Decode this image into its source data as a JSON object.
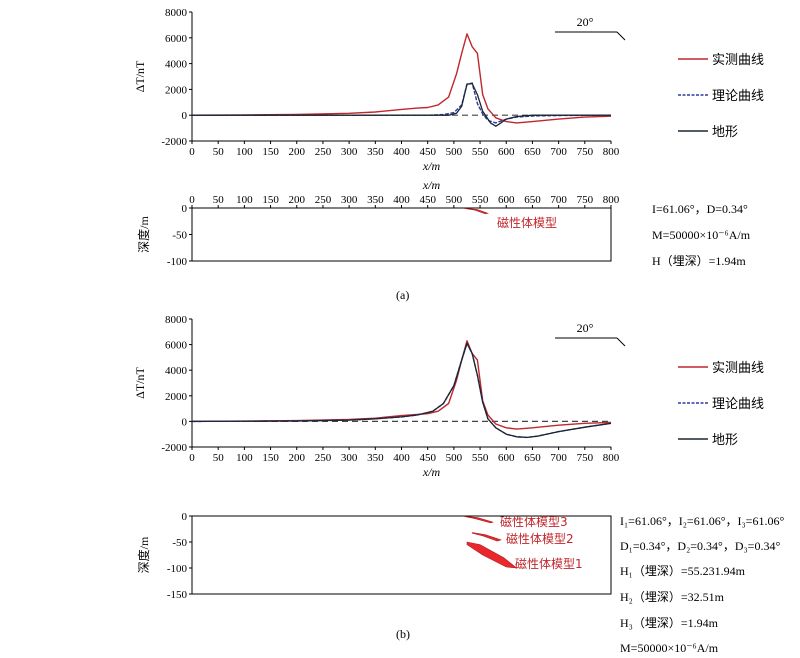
{
  "colors": {
    "measured": "#c0272d",
    "theory": "#2e3a9e",
    "terrain": "#1b2631",
    "zero": "#444444",
    "body": "#e8282b"
  },
  "chart_data": [
    {
      "type": "line",
      "panel": "(a)",
      "xlabel": "x/m",
      "ylabel": "ΔT/nT",
      "xlim": [
        0,
        800
      ],
      "ylim": [
        -2000,
        8000
      ],
      "x_ticks": [
        "0",
        "50",
        "100",
        "150",
        "200",
        "250",
        "300",
        "350",
        "400",
        "450",
        "500",
        "550",
        "600",
        "650",
        "700",
        "750",
        "800"
      ],
      "y_ticks": [
        "8000",
        "6000",
        "4000",
        "2000",
        "0",
        "-2000"
      ],
      "angle_label": "20°",
      "legend": [
        "实测曲线",
        "理论曲线",
        "地形"
      ],
      "series": [
        {
          "name": "实测曲线",
          "x": [
            0,
            100,
            200,
            300,
            350,
            400,
            430,
            450,
            470,
            490,
            505,
            515,
            525,
            535,
            545,
            555,
            565,
            580,
            600,
            620,
            650,
            700,
            750,
            800
          ],
          "y": [
            0,
            20,
            60,
            150,
            250,
            450,
            550,
            600,
            800,
            1400,
            3200,
            4800,
            6300,
            5300,
            4800,
            1600,
            500,
            -200,
            -500,
            -600,
            -500,
            -300,
            -150,
            -80
          ]
        },
        {
          "name": "理论曲线",
          "x": [
            0,
            300,
            450,
            480,
            500,
            515,
            525,
            535,
            545,
            555,
            565,
            580,
            600,
            620,
            650,
            700,
            800
          ],
          "y": [
            0,
            0,
            0,
            50,
            200,
            800,
            2400,
            2500,
            900,
            100,
            -400,
            -600,
            -300,
            -150,
            -60,
            -20,
            0
          ]
        },
        {
          "name": "地形",
          "x": [
            0,
            450,
            490,
            505,
            515,
            525,
            535,
            545,
            555,
            570,
            580,
            590,
            600,
            620,
            650,
            700,
            800
          ],
          "y": [
            0,
            0,
            0,
            150,
            700,
            2400,
            2450,
            1600,
            300,
            -600,
            -850,
            -600,
            -300,
            -100,
            0,
            0,
            0
          ]
        }
      ]
    },
    {
      "type": "line",
      "panel": "(b)",
      "xlabel": "x/m",
      "ylabel": "ΔT/nT",
      "xlim": [
        0,
        800
      ],
      "ylim": [
        -2000,
        8000
      ],
      "x_ticks": [
        "0",
        "50",
        "100",
        "150",
        "200",
        "250",
        "300",
        "350",
        "400",
        "450",
        "500",
        "550",
        "600",
        "650",
        "700",
        "750",
        "800"
      ],
      "y_ticks": [
        "8000",
        "6000",
        "4000",
        "2000",
        "0",
        "-2000"
      ],
      "angle_label": "20°",
      "legend": [
        "实测曲线",
        "理论曲线",
        "地形"
      ],
      "series": [
        {
          "name": "实测曲线",
          "x": [
            0,
            100,
            200,
            300,
            350,
            400,
            430,
            450,
            470,
            490,
            505,
            515,
            525,
            535,
            545,
            555,
            565,
            580,
            600,
            620,
            650,
            700,
            750,
            800
          ],
          "y": [
            0,
            20,
            60,
            150,
            250,
            450,
            550,
            600,
            800,
            1400,
            3200,
            4800,
            6300,
            5300,
            4800,
            1600,
            500,
            -200,
            -500,
            -600,
            -500,
            -300,
            -150,
            -80
          ]
        },
        {
          "name": "理论曲线",
          "x": [
            0,
            200,
            300,
            350,
            400,
            430,
            460,
            480,
            500,
            515,
            525,
            535,
            545,
            555,
            565,
            580,
            600,
            620,
            640,
            660,
            700,
            750,
            800
          ],
          "y": [
            0,
            30,
            100,
            200,
            350,
            500,
            800,
            1400,
            2800,
            4800,
            6100,
            5300,
            3600,
            1500,
            200,
            -500,
            -1000,
            -1200,
            -1250,
            -1150,
            -800,
            -450,
            -150
          ]
        },
        {
          "name": "地形",
          "x": [
            0,
            200,
            300,
            350,
            400,
            430,
            460,
            480,
            500,
            515,
            525,
            535,
            545,
            555,
            565,
            580,
            600,
            620,
            640,
            660,
            700,
            750,
            800
          ],
          "y": [
            0,
            30,
            100,
            200,
            350,
            500,
            800,
            1400,
            2800,
            4800,
            6100,
            5300,
            3600,
            1500,
            200,
            -500,
            -1000,
            -1200,
            -1250,
            -1150,
            -800,
            -450,
            -150
          ]
        }
      ]
    }
  ],
  "depth_a": {
    "xlabel": "x/m",
    "ylabel": "深度/m",
    "xlim": [
      0,
      800
    ],
    "ylim": [
      -100,
      0
    ],
    "x_ticks": [
      "0",
      "50",
      "100",
      "150",
      "200",
      "250",
      "300",
      "350",
      "400",
      "450",
      "500",
      "550",
      "600",
      "650",
      "700",
      "750",
      "800"
    ],
    "y_ticks": [
      "0",
      "-50",
      "-100"
    ],
    "bodies": [
      {
        "label": "磁性体模型",
        "x": [
          520,
          545,
          565,
          560,
          540,
          520
        ],
        "y": [
          -0.5,
          -3,
          -10,
          -11,
          -4,
          -1
        ]
      }
    ],
    "params": [
      "I=61.06°，D=0.34°",
      "M=50000×10⁻⁶A/m",
      "H（埋深）=1.94m"
    ]
  },
  "depth_b": {
    "ylabel": "深度/m",
    "xlim": [
      0,
      800
    ],
    "ylim": [
      -150,
      0
    ],
    "y_ticks": [
      "0",
      "-50",
      "-100",
      "-150"
    ],
    "bodies": [
      {
        "label": "磁性体模型3",
        "x": [
          520,
          545,
          575,
          570,
          540,
          520
        ],
        "y": [
          -0.5,
          -3,
          -12,
          -13,
          -5,
          -1
        ]
      },
      {
        "label": "磁性体模型2",
        "x": [
          535,
          560,
          590,
          583,
          555,
          535
        ],
        "y": [
          -32,
          -36,
          -46,
          -48,
          -38,
          -33
        ]
      },
      {
        "label": "磁性体模型1",
        "x": [
          525,
          550,
          595,
          620,
          600,
          555,
          525
        ],
        "y": [
          -50,
          -55,
          -80,
          -100,
          -98,
          -75,
          -55
        ]
      }
    ],
    "params": [
      "I₁=61.06°，I₂=61.06°，I₃=61.06°",
      "D₁=0.34°，D₂=0.34°，D₃=0.34°",
      "H₁（埋深）=55.231.94m",
      "H₂（埋深）=32.51m",
      "H₃（埋深）=1.94m",
      "M=50000×10⁻⁶A/m"
    ]
  },
  "captions": {
    "a": "(a)",
    "b": "(b)"
  }
}
